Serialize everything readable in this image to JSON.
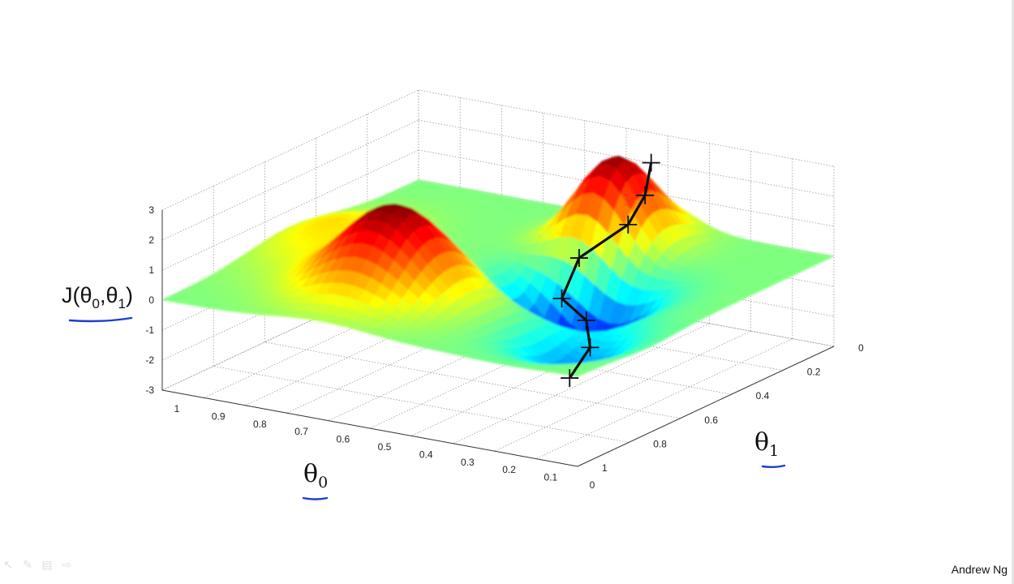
{
  "chart_data": {
    "type": "surface",
    "zlabel": "J(θ0,θ1)",
    "xlabel": "θ0",
    "ylabel": "θ1",
    "theta0_ticks": [
      "1",
      "0.9",
      "0.8",
      "0.7",
      "0.6",
      "0.5",
      "0.4",
      "0.3",
      "0.2",
      "0.1",
      "0"
    ],
    "theta1_ticks": [
      "0",
      "0.2",
      "0.4",
      "0.6",
      "0.8",
      "1"
    ],
    "z_ticks": [
      "3",
      "2",
      "1",
      "0",
      "-1",
      "-2",
      "-3"
    ],
    "xlim": [
      0,
      1
    ],
    "ylim": [
      0,
      1
    ],
    "zlim": [
      -3,
      3
    ],
    "grid": true,
    "colormap": "jet",
    "descent_path": {
      "theta0": [
        0.44,
        0.43,
        0.44,
        0.49,
        0.47,
        0.38,
        0.34,
        0.34
      ],
      "theta1": [
        0.0,
        0.04,
        0.09,
        0.2,
        0.3,
        0.35,
        0.4,
        0.48
      ],
      "J": [
        2.0,
        1.1,
        0.3,
        -0.5,
        -1.4,
        -1.7,
        -2.3,
        -3.0
      ]
    }
  },
  "credit": "Andrew Ng",
  "colors": {
    "path": "#111111",
    "underline": "#1a3fd0"
  },
  "toolbar": {
    "icons": [
      "arrow-icon",
      "pen-icon",
      "slides-icon",
      "forward-icon"
    ]
  }
}
